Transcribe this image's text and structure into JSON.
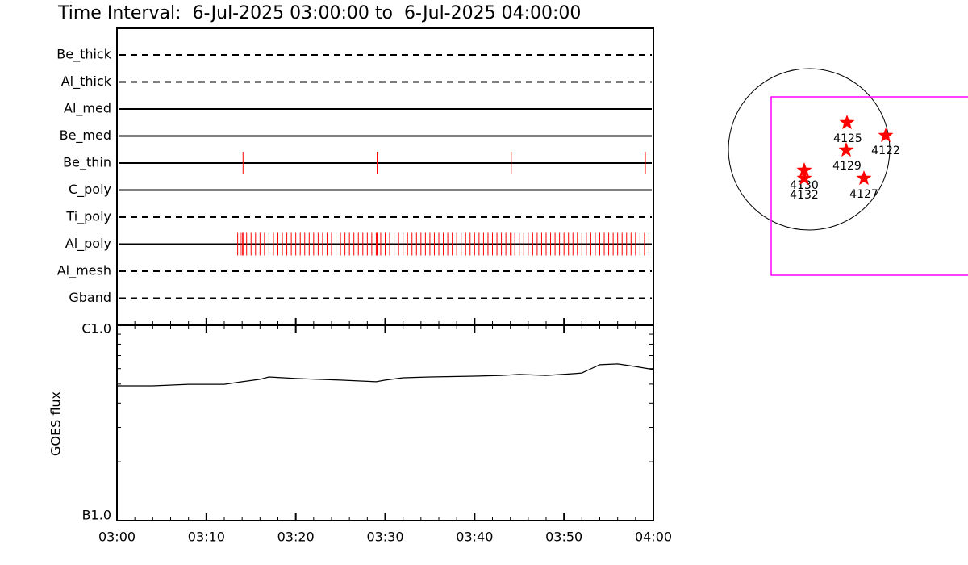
{
  "title": "Time Interval:  6-Jul-2025 03:00:00 to  6-Jul-2025 04:00:00",
  "chart_data": [
    {
      "type": "timeline",
      "event_color": "#ff0000",
      "xlim": [
        0,
        60
      ],
      "filters": [
        {
          "name": "Be_thick",
          "style": "dashed",
          "events": []
        },
        {
          "name": "Al_thick",
          "style": "dashed",
          "events": []
        },
        {
          "name": "Al_med",
          "style": "solid",
          "events": []
        },
        {
          "name": "Be_med",
          "style": "solid",
          "events": []
        },
        {
          "name": "Be_thin",
          "style": "solid",
          "events": [
            14.1,
            29.1,
            44.1,
            59.1
          ]
        },
        {
          "name": "C_poly",
          "style": "solid",
          "events": []
        },
        {
          "name": "Ti_poly",
          "style": "dashed",
          "events": []
        },
        {
          "name": "Al_poly",
          "style": "solid",
          "events": [
            13.5,
            13.8,
            14,
            14.1,
            14.5,
            15,
            15.5,
            16,
            16.5,
            17,
            17.5,
            18,
            18.5,
            19,
            19.5,
            20,
            20.5,
            21,
            21.5,
            22,
            22.5,
            23,
            23.5,
            24,
            24.5,
            25,
            25.5,
            26,
            26.5,
            27,
            27.5,
            28,
            28.5,
            29,
            29.1,
            29.5,
            30,
            30.5,
            31,
            31.5,
            32,
            32.5,
            33,
            33.5,
            34,
            34.5,
            35,
            35.5,
            36,
            36.5,
            37,
            37.5,
            38,
            38.5,
            39,
            39.5,
            40,
            40.5,
            41,
            41.5,
            42,
            42.5,
            43,
            43.5,
            44,
            44.1,
            44.5,
            45,
            45.5,
            46,
            46.5,
            47,
            47.5,
            48,
            48.5,
            49,
            49.5,
            50,
            50.5,
            51,
            51.5,
            52,
            52.5,
            53,
            53.5,
            54,
            54.5,
            55,
            55.5,
            56,
            56.5,
            57,
            57.5,
            58,
            58.5,
            59,
            59.5
          ]
        },
        {
          "name": "Al_mesh",
          "style": "dashed",
          "events": []
        },
        {
          "name": "Gband",
          "style": "dashed",
          "events": []
        }
      ]
    },
    {
      "type": "line",
      "y_label": "GOES flux",
      "log_y": true,
      "color": "#000000",
      "xlim": [
        0,
        60
      ],
      "xticks": [
        {
          "value": 0,
          "label": "03:00"
        },
        {
          "value": 10,
          "label": "03:10"
        },
        {
          "value": 20,
          "label": "03:20"
        },
        {
          "value": 30,
          "label": "03:30"
        },
        {
          "value": 40,
          "label": "03:40"
        },
        {
          "value": 50,
          "label": "03:50"
        },
        {
          "value": 60,
          "label": "04:00"
        }
      ],
      "minor_xticks": [
        2,
        4,
        6,
        8,
        12,
        14,
        16,
        18,
        22,
        24,
        26,
        28,
        32,
        34,
        36,
        38,
        42,
        44,
        46,
        48,
        52,
        54,
        56,
        58
      ],
      "ylim": [
        1e-07,
        1e-06
      ],
      "yticks": [
        {
          "value": 1e-07,
          "label": "B1.0"
        },
        {
          "value": 1e-06,
          "label": "C1.0"
        }
      ],
      "minor_yticks": [
        2e-07,
        3e-07,
        4e-07,
        5e-07,
        6e-07,
        7e-07,
        8e-07,
        9e-07
      ],
      "x": [
        0,
        4,
        8,
        12,
        14,
        16,
        17,
        20,
        25,
        29,
        30,
        32,
        35,
        40,
        43,
        45,
        48,
        51,
        52,
        53,
        54,
        56,
        58,
        60
      ],
      "values": [
        4.9e-07,
        4.9e-07,
        4.99e-07,
        4.99e-07,
        5.14e-07,
        5.29e-07,
        5.44e-07,
        5.34e-07,
        5.24e-07,
        5.14e-07,
        5.24e-07,
        5.39e-07,
        5.44e-07,
        5.49e-07,
        5.54e-07,
        5.6e-07,
        5.54e-07,
        5.65e-07,
        5.7e-07,
        5.98e-07,
        6.28e-07,
        6.34e-07,
        6.15e-07,
        5.93e-07
      ]
    },
    {
      "type": "map",
      "star_color": "#ff0000",
      "box_color": "#ff00ff",
      "regions": [
        "4125",
        "4122",
        "4129",
        "4130",
        "4132",
        "4127"
      ]
    }
  ]
}
